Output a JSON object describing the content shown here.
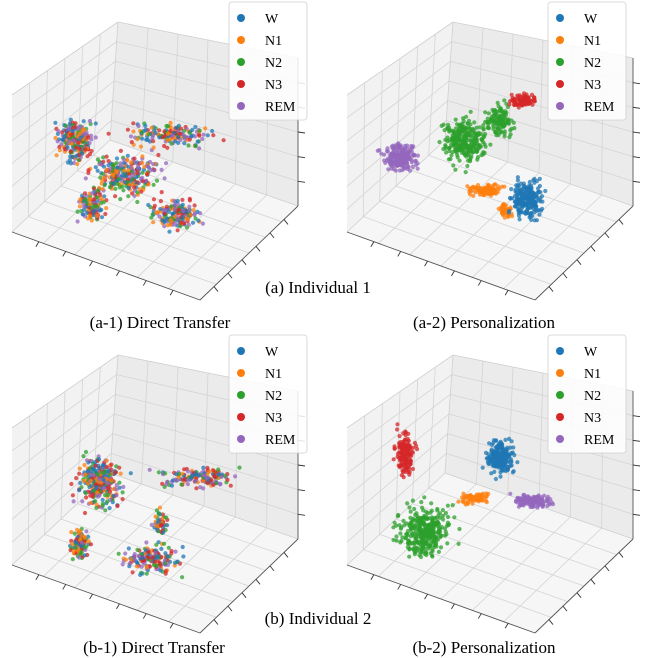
{
  "groups": [
    {
      "label": "(a) Individual 1"
    },
    {
      "label": "(b) Individual 2"
    }
  ],
  "legend": {
    "entries": [
      {
        "label": "W",
        "color": "#1f77b4"
      },
      {
        "label": "N1",
        "color": "#ff7f0e"
      },
      {
        "label": "N2",
        "color": "#2ca02c"
      },
      {
        "label": "N3",
        "color": "#d62728"
      },
      {
        "label": "REM",
        "color": "#9467bd"
      }
    ]
  },
  "chart_data": [
    {
      "type": "scatter",
      "projection": "3d",
      "title": "(a-1) Direct Transfer",
      "group": "(a) Individual 1",
      "series": [
        {
          "name": "W"
        },
        {
          "name": "N1"
        },
        {
          "name": "N2"
        },
        {
          "name": "N3"
        },
        {
          "name": "REM"
        }
      ],
      "pattern": "mixed",
      "tick_labels": "none",
      "grid": true,
      "legend_position": "top-right"
    },
    {
      "type": "scatter",
      "projection": "3d",
      "title": "(a-2) Personalization",
      "group": "(a) Individual 1",
      "series": [
        {
          "name": "W"
        },
        {
          "name": "N1"
        },
        {
          "name": "N2"
        },
        {
          "name": "N3"
        },
        {
          "name": "REM"
        }
      ],
      "pattern": "clustered",
      "tick_labels": "none",
      "grid": true,
      "legend_position": "top-right"
    },
    {
      "type": "scatter",
      "projection": "3d",
      "title": "(b-1) Direct Transfer",
      "group": "(b) Individual 2",
      "series": [
        {
          "name": "W"
        },
        {
          "name": "N1"
        },
        {
          "name": "N2"
        },
        {
          "name": "N3"
        },
        {
          "name": "REM"
        }
      ],
      "pattern": "mixed",
      "tick_labels": "none",
      "grid": true,
      "legend_position": "top-right"
    },
    {
      "type": "scatter",
      "projection": "3d",
      "title": "(b-2) Personalization",
      "group": "(b) Individual 2",
      "series": [
        {
          "name": "W"
        },
        {
          "name": "N1"
        },
        {
          "name": "N2"
        },
        {
          "name": "N3"
        },
        {
          "name": "REM"
        }
      ],
      "pattern": "clustered",
      "tick_labels": "none",
      "grid": true,
      "legend_position": "top-right"
    }
  ]
}
